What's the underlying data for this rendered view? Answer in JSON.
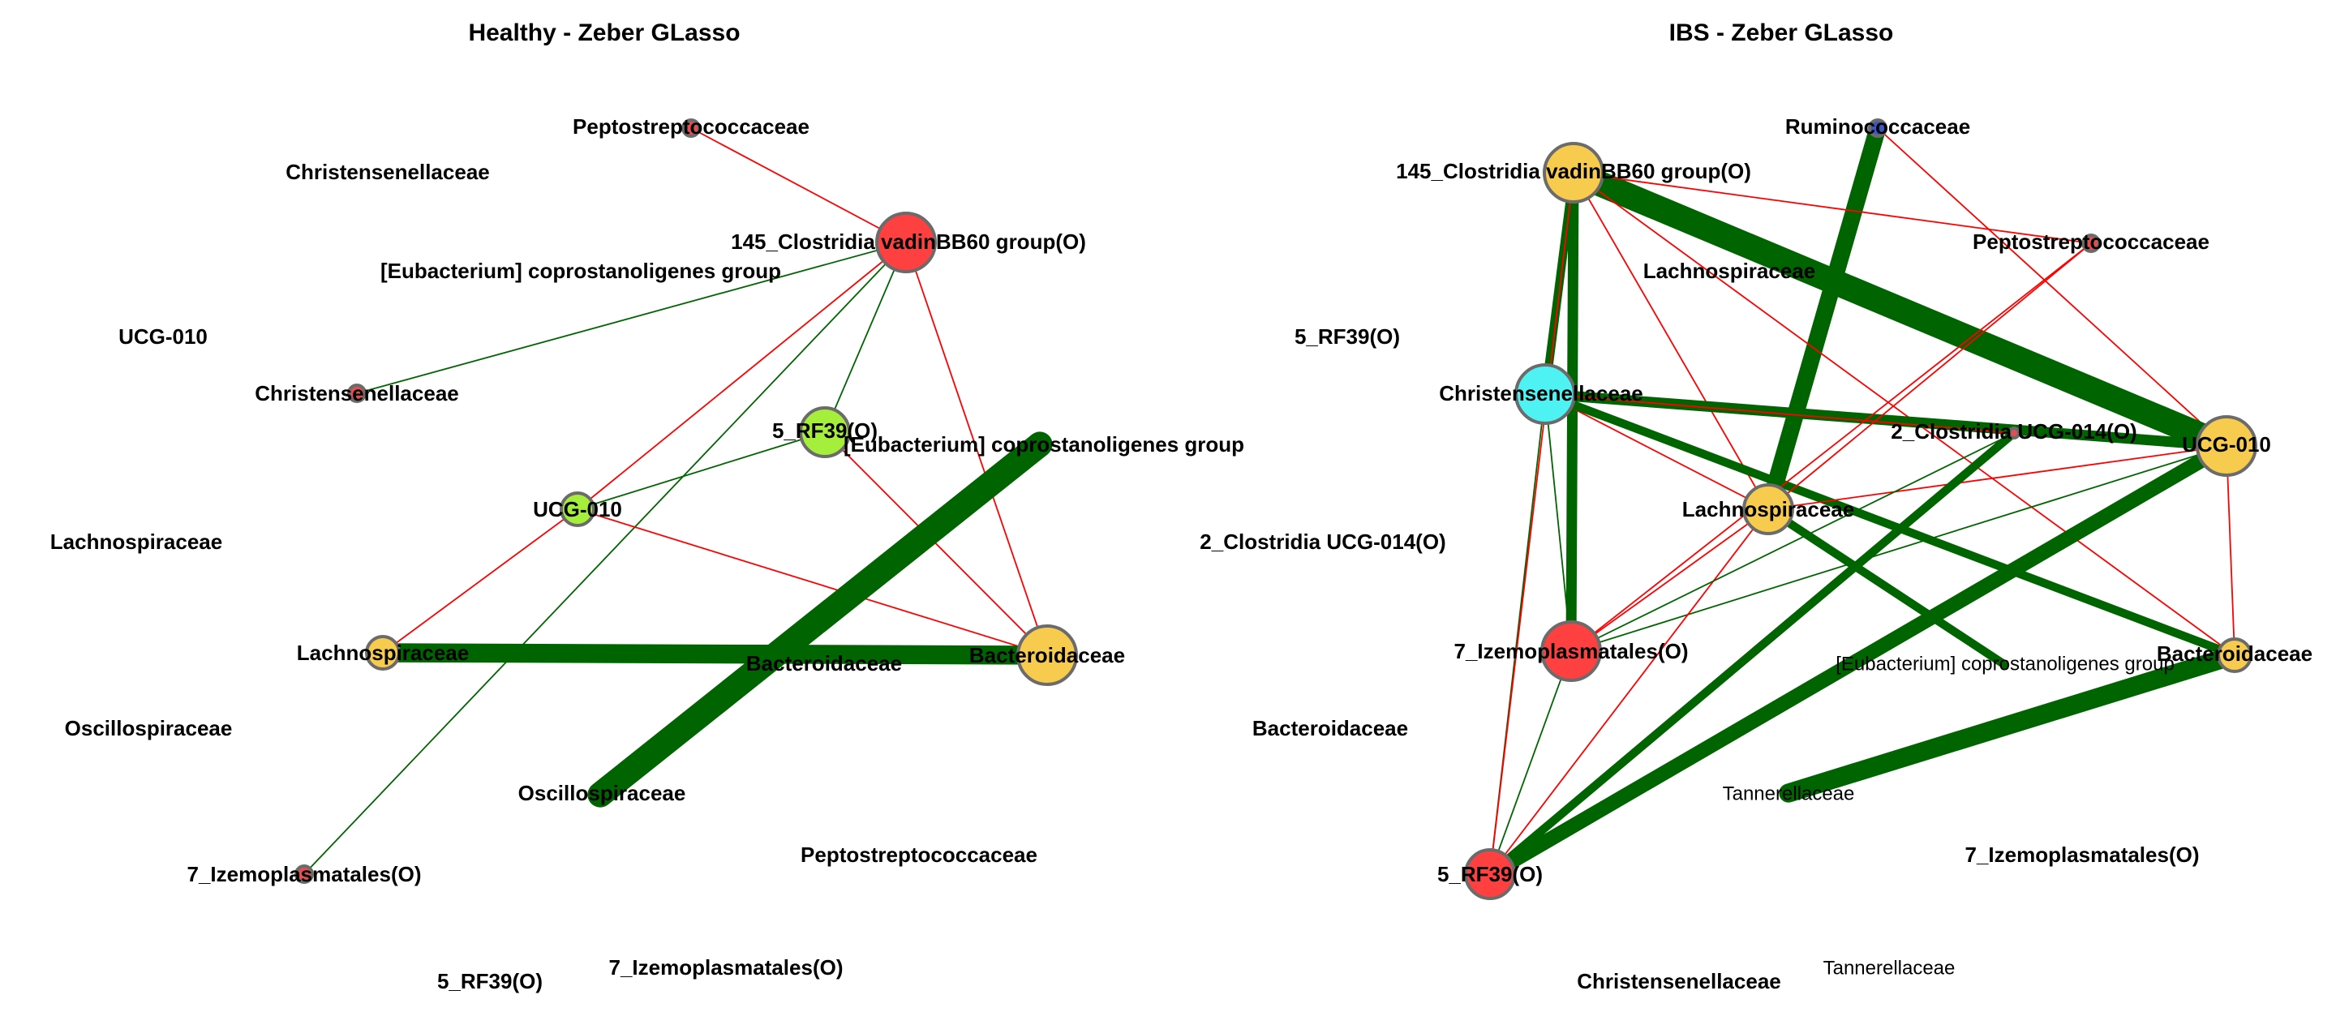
{
  "colors": {
    "positive_edge": "#006400",
    "negative_edge": "#ff0000",
    "red_node": "#ff4040",
    "yellow_node": "#f7cb4d",
    "lime_node": "#a6ee3c",
    "cyan_node": "#4ef2f2",
    "blue_node": "#3b57c4",
    "small_red_node": "#e05050"
  },
  "panels": [
    {
      "id": "healthy",
      "title": "Healthy - Zeber GLasso",
      "nodes": [
        {
          "id": "h_pepto",
          "label": "Peptostreptococcaceae",
          "color": "small_red_node",
          "size": "xs"
        },
        {
          "id": "h_145",
          "label": "145_Clostridia vadinBB60 group(O)",
          "color": "red_node",
          "size": "l"
        },
        {
          "id": "h_chris_n",
          "label": "Christensenellaceae",
          "color": "small_red_node",
          "size": "xs"
        },
        {
          "id": "h_5rf",
          "label": "5_RF39(O)",
          "color": "lime_node",
          "size": "m"
        },
        {
          "id": "h_eub",
          "label": "[Eubacterium] coprostanoligenes group",
          "color": "positive_edge",
          "size": "hidden"
        },
        {
          "id": "h_ucg",
          "label": "UCG-010",
          "color": "lime_node",
          "size": "s"
        },
        {
          "id": "h_lach",
          "label": "Lachnospiraceae",
          "color": "yellow_node",
          "size": "s"
        },
        {
          "id": "h_bact",
          "label": "Bacteroidaceae",
          "color": "yellow_node",
          "size": "l"
        },
        {
          "id": "h_osc",
          "label": "Oscillospiraceae",
          "color": "positive_edge",
          "size": "hidden"
        },
        {
          "id": "h_7iz",
          "label": "7_Izemoplasmatales(O)",
          "color": "small_red_node",
          "size": "xs"
        }
      ],
      "edges": [
        {
          "from": "h_pepto",
          "to": "h_145",
          "sign": "negative",
          "weight": 1
        },
        {
          "from": "h_145",
          "to": "h_chris_n",
          "sign": "positive",
          "weight": 1
        },
        {
          "from": "h_145",
          "to": "h_ucg",
          "sign": "negative",
          "weight": 1
        },
        {
          "from": "h_145",
          "to": "h_5rf",
          "sign": "positive",
          "weight": 1
        },
        {
          "from": "h_145",
          "to": "h_7iz",
          "sign": "positive",
          "weight": 1
        },
        {
          "from": "h_145",
          "to": "h_bact",
          "sign": "negative",
          "weight": 1
        },
        {
          "from": "h_5rf",
          "to": "h_ucg",
          "sign": "positive",
          "weight": 1
        },
        {
          "from": "h_5rf",
          "to": "h_bact",
          "sign": "negative",
          "weight": 1
        },
        {
          "from": "h_ucg",
          "to": "h_bact",
          "sign": "negative",
          "weight": 1
        },
        {
          "from": "h_ucg",
          "to": "h_lach",
          "sign": "negative",
          "weight": 1
        },
        {
          "from": "h_lach",
          "to": "h_bact",
          "sign": "positive",
          "weight": 9
        },
        {
          "from": "h_eub",
          "to": "h_osc",
          "sign": "positive",
          "weight": 12
        }
      ],
      "free_labels": [
        {
          "id": "h_f_chris_top",
          "text": "Christensenellaceae",
          "thin": false
        },
        {
          "id": "h_f_eub",
          "text": "[Eubacterium] coprostanoligenes group",
          "thin": false
        },
        {
          "id": "h_f_ucg",
          "text": "UCG-010",
          "thin": false
        },
        {
          "id": "h_f_lach",
          "text": "Lachnospiraceae",
          "thin": false
        },
        {
          "id": "h_f_bact",
          "text": "Bacteroidaceae",
          "thin": false
        },
        {
          "id": "h_f_osc",
          "text": "Oscillospiraceae",
          "thin": false
        },
        {
          "id": "h_f_pepto",
          "text": "Peptostreptococcaceae",
          "thin": false
        },
        {
          "id": "h_f_7iz",
          "text": "7_Izemoplasmatales(O)",
          "thin": false
        },
        {
          "id": "h_f_5rf",
          "text": "5_RF39(O)",
          "thin": false
        }
      ]
    },
    {
      "id": "ibs",
      "title": "IBS - Zeber GLasso",
      "nodes": [
        {
          "id": "i_rumi",
          "label": "Ruminococcaceae",
          "color": "blue_node",
          "size": "xs"
        },
        {
          "id": "i_145",
          "label": "145_Clostridia vadinBB60 group(O)",
          "color": "yellow_node",
          "size": "l"
        },
        {
          "id": "i_pepto",
          "label": "Peptostreptococcaceae",
          "color": "small_red_node",
          "size": "xs"
        },
        {
          "id": "i_chris",
          "label": "Christensenellaceae",
          "color": "cyan_node",
          "size": "l"
        },
        {
          "id": "i_2cl",
          "label": "2_Clostridia UCG-014(O)",
          "color": "small_red_node",
          "size": "dot"
        },
        {
          "id": "i_ucg",
          "label": "UCG-010",
          "color": "yellow_node",
          "size": "l"
        },
        {
          "id": "i_lach",
          "label": "Lachnospiraceae",
          "color": "yellow_node",
          "size": "m"
        },
        {
          "id": "i_7iz",
          "label": "7_Izemoplasmatales(O)",
          "color": "red_node",
          "size": "l"
        },
        {
          "id": "i_eub",
          "label": "[Eubacterium] coprostanoligenes group",
          "color": "positive_edge",
          "size": "hidden"
        },
        {
          "id": "i_bact",
          "label": "Bacteroidaceae",
          "color": "yellow_node",
          "size": "s"
        },
        {
          "id": "i_tann",
          "label": "Tannerellaceae",
          "color": "positive_edge",
          "size": "hidden"
        },
        {
          "id": "i_5rf",
          "label": "5_RF39(O)",
          "color": "red_node",
          "size": "m"
        }
      ],
      "edges": [
        {
          "from": "i_rumi",
          "to": "i_lach",
          "sign": "positive",
          "weight": 8
        },
        {
          "from": "i_rumi",
          "to": "i_ucg",
          "sign": "negative",
          "weight": 1
        },
        {
          "from": "i_145",
          "to": "i_ucg",
          "sign": "positive",
          "weight": 12
        },
        {
          "from": "i_145",
          "to": "i_pepto",
          "sign": "negative",
          "weight": 1
        },
        {
          "from": "i_145",
          "to": "i_chris",
          "sign": "positive",
          "weight": 4
        },
        {
          "from": "i_145",
          "to": "i_7iz",
          "sign": "positive",
          "weight": 5
        },
        {
          "from": "i_145",
          "to": "i_lach",
          "sign": "negative",
          "weight": 1
        },
        {
          "from": "i_145",
          "to": "i_bact",
          "sign": "negative",
          "weight": 1
        },
        {
          "from": "i_chris",
          "to": "i_ucg",
          "sign": "positive",
          "weight": 5
        },
        {
          "from": "i_chris",
          "to": "i_lach",
          "sign": "negative",
          "weight": 1
        },
        {
          "from": "i_chris",
          "to": "i_7iz",
          "sign": "positive",
          "weight": 1
        },
        {
          "from": "i_chris",
          "to": "i_5rf",
          "sign": "positive",
          "weight": 1
        },
        {
          "from": "i_chris",
          "to": "i_bact",
          "sign": "positive",
          "weight": 4
        },
        {
          "from": "i_chris",
          "to": "i_2cl",
          "sign": "negative",
          "weight": 1
        },
        {
          "from": "i_pepto",
          "to": "i_lach",
          "sign": "negative",
          "weight": 1
        },
        {
          "from": "i_pepto",
          "to": "i_7iz",
          "sign": "negative",
          "weight": 1
        },
        {
          "from": "i_ucg",
          "to": "i_lach",
          "sign": "negative",
          "weight": 1
        },
        {
          "from": "i_ucg",
          "to": "i_7iz",
          "sign": "positive",
          "weight": 1
        },
        {
          "from": "i_ucg",
          "to": "i_5rf",
          "sign": "positive",
          "weight": 7
        },
        {
          "from": "i_ucg",
          "to": "i_bact",
          "sign": "negative",
          "weight": 1
        },
        {
          "from": "i_lach",
          "to": "i_eub",
          "sign": "positive",
          "weight": 4
        },
        {
          "from": "i_lach",
          "to": "i_7iz",
          "sign": "negative",
          "weight": 1
        },
        {
          "from": "i_lach",
          "to": "i_5rf",
          "sign": "negative",
          "weight": 1
        },
        {
          "from": "i_2cl",
          "to": "i_5rf",
          "sign": "positive",
          "weight": 4
        },
        {
          "from": "i_2cl",
          "to": "i_7iz",
          "sign": "positive",
          "weight": 1
        },
        {
          "from": "i_7iz",
          "to": "i_5rf",
          "sign": "positive",
          "weight": 1
        },
        {
          "from": "i_bact",
          "to": "i_tann",
          "sign": "positive",
          "weight": 9
        },
        {
          "from": "i_5rf",
          "to": "i_145",
          "sign": "negative",
          "weight": 1
        }
      ],
      "free_labels": [
        {
          "id": "i_f_lach",
          "text": "Lachnospiraceae",
          "thin": false
        },
        {
          "id": "i_f_5rf",
          "text": "5_RF39(O)",
          "thin": false
        },
        {
          "id": "i_f_2cl",
          "text": "2_Clostridia UCG-014(O)",
          "thin": false
        },
        {
          "id": "i_f_bact",
          "text": "Bacteroidaceae",
          "thin": false
        },
        {
          "id": "i_f_7iz",
          "text": "7_Izemoplasmatales(O)",
          "thin": false
        },
        {
          "id": "i_f_chris",
          "text": "Christensenellaceae",
          "thin": false
        },
        {
          "id": "i_f_tann",
          "text": "Tannerellaceae",
          "thin": true
        }
      ]
    }
  ]
}
